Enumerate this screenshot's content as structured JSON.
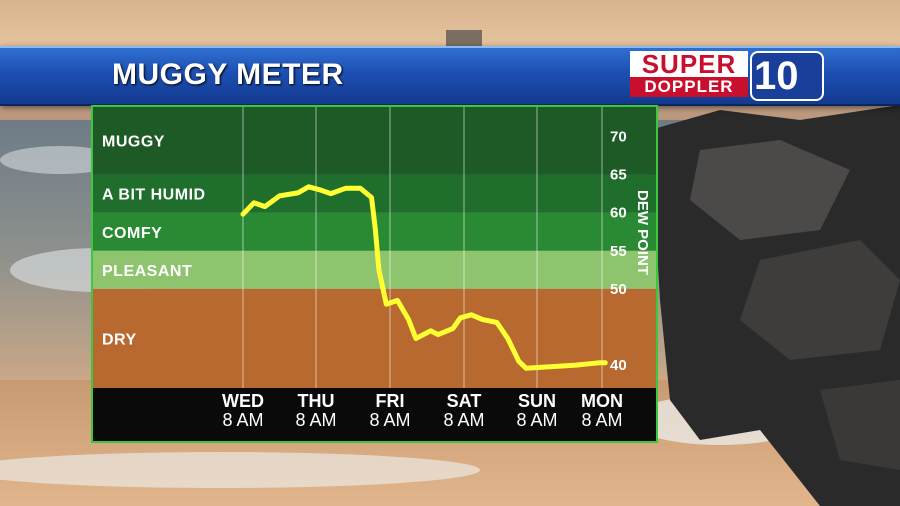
{
  "title": "MUGGY METER",
  "logo": {
    "top_text": "SUPER",
    "bottom_text": "DOPPLER",
    "badge": "10"
  },
  "colors": {
    "muggy": "#1d5a26",
    "humid": "#1f6e2c",
    "comfy": "#2a8a33",
    "pleasant": "#8fc46e",
    "dry": "#b8692f",
    "line": "#ffff33",
    "frame": "#3cc83c",
    "axis_band": "#0a0a0a"
  },
  "chart_data": {
    "type": "line",
    "ylabel": "DEW POINT",
    "y_ticks": [
      70,
      65,
      60,
      55,
      50,
      40
    ],
    "ylim": [
      37,
      74
    ],
    "categories": [
      {
        "day": "WED",
        "time": "8 AM"
      },
      {
        "day": "THU",
        "time": "8 AM"
      },
      {
        "day": "FRI",
        "time": "8 AM"
      },
      {
        "day": "SAT",
        "time": "8 AM"
      },
      {
        "day": "SUN",
        "time": "8 AM"
      },
      {
        "day": "MON",
        "time": "8 AM"
      }
    ],
    "bands": [
      {
        "label": "MUGGY",
        "from": 65,
        "to": 74,
        "color_key": "muggy"
      },
      {
        "label": "A BIT HUMID",
        "from": 60,
        "to": 65,
        "color_key": "humid"
      },
      {
        "label": "COMFY",
        "from": 55,
        "to": 60,
        "color_key": "comfy"
      },
      {
        "label": "PLEASANT",
        "from": 50,
        "to": 55,
        "color_key": "pleasant"
      },
      {
        "label": "DRY",
        "from": 37,
        "to": 50,
        "color_key": "dry"
      }
    ],
    "series": [
      {
        "points": [
          [
            0.0,
            59.8
          ],
          [
            0.15,
            61.3
          ],
          [
            0.3,
            60.8
          ],
          [
            0.5,
            62.2
          ],
          [
            0.75,
            62.6
          ],
          [
            0.9,
            63.4
          ],
          [
            1.05,
            63.0
          ],
          [
            1.2,
            62.5
          ],
          [
            1.4,
            63.2
          ],
          [
            1.6,
            63.2
          ],
          [
            1.75,
            62.0
          ],
          [
            1.8,
            58.0
          ],
          [
            1.85,
            52.5
          ],
          [
            1.95,
            48.0
          ],
          [
            2.1,
            48.5
          ],
          [
            2.25,
            46.0
          ],
          [
            2.35,
            43.5
          ],
          [
            2.55,
            44.5
          ],
          [
            2.65,
            44.0
          ],
          [
            2.85,
            44.8
          ],
          [
            2.95,
            46.2
          ],
          [
            3.1,
            46.6
          ],
          [
            3.25,
            46.0
          ],
          [
            3.45,
            45.6
          ],
          [
            3.6,
            43.5
          ],
          [
            3.75,
            40.5
          ],
          [
            3.85,
            39.6
          ],
          [
            4.2,
            39.8
          ],
          [
            4.6,
            40.0
          ],
          [
            4.95,
            40.3
          ],
          [
            5.05,
            40.3
          ]
        ]
      }
    ]
  }
}
